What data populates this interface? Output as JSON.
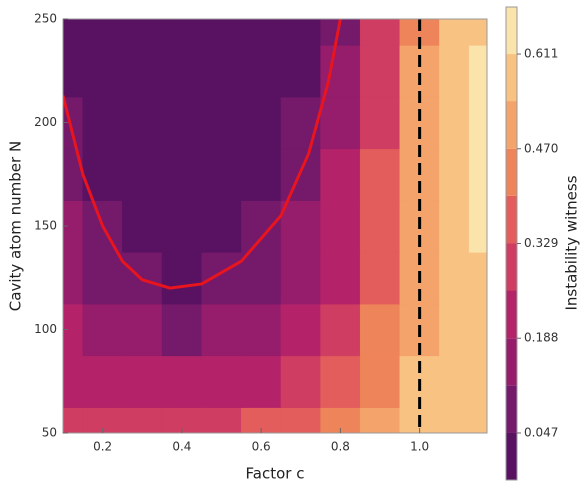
{
  "chart_data": {
    "type": "contour",
    "x_label": "Factor c",
    "y_label": "Cavity atom number N",
    "colorbar_label": "Instability witness",
    "x": [
      0.1,
      0.2,
      0.3,
      0.4,
      0.5,
      0.6,
      0.7,
      0.8,
      0.9,
      1.0,
      1.1,
      1.15
    ],
    "y": [
      50,
      75,
      100,
      125,
      150,
      175,
      200,
      225,
      250
    ],
    "z": [
      [
        0.28,
        0.3,
        0.3,
        0.3,
        0.3,
        0.33,
        0.38,
        0.42,
        0.5,
        0.58,
        0.6,
        0.6
      ],
      [
        0.22,
        0.22,
        0.2,
        0.2,
        0.2,
        0.22,
        0.28,
        0.36,
        0.45,
        0.55,
        0.57,
        0.58
      ],
      [
        0.2,
        0.16,
        0.12,
        0.1,
        0.12,
        0.16,
        0.22,
        0.3,
        0.4,
        0.52,
        0.55,
        0.57
      ],
      [
        0.16,
        0.1,
        0.06,
        0.03,
        0.05,
        0.1,
        0.16,
        0.25,
        0.38,
        0.5,
        0.56,
        0.58
      ],
      [
        0.12,
        0.06,
        0.02,
        0.0,
        0.02,
        0.06,
        0.13,
        0.22,
        0.36,
        0.5,
        0.58,
        0.62
      ],
      [
        0.08,
        0.02,
        0.0,
        0.0,
        0.0,
        0.03,
        0.1,
        0.2,
        0.35,
        0.5,
        0.6,
        0.65
      ],
      [
        0.05,
        0.0,
        0.0,
        0.0,
        0.0,
        0.0,
        0.05,
        0.15,
        0.32,
        0.48,
        0.6,
        0.65
      ],
      [
        0.02,
        0.0,
        0.0,
        0.0,
        0.0,
        0.0,
        0.02,
        0.12,
        0.3,
        0.47,
        0.58,
        0.62
      ],
      [
        0.0,
        0.0,
        0.0,
        0.0,
        0.0,
        0.0,
        0.0,
        0.1,
        0.3,
        0.45,
        0.55,
        0.6
      ]
    ],
    "curve": {
      "color": "#e8141e",
      "x": [
        0.1,
        0.15,
        0.2,
        0.25,
        0.3,
        0.37,
        0.45,
        0.55,
        0.65,
        0.72,
        0.77,
        0.8
      ],
      "y": [
        213,
        175,
        150,
        133,
        124,
        120,
        122,
        133,
        155,
        185,
        220,
        250
      ]
    },
    "vline": 1.0,
    "xlim": [
      0.1,
      1.17
    ],
    "ylim": [
      50,
      250
    ],
    "xticks": [
      0.2,
      0.4,
      0.6,
      0.8,
      {
        "value": 1.0,
        "label": "1.0"
      }
    ],
    "yticks": [
      50,
      100,
      150,
      200,
      250
    ],
    "levels": [
      -0.023,
      0.047,
      0.118,
      0.188,
      0.259,
      0.329,
      0.4,
      0.47,
      0.541,
      0.611,
      0.681
    ],
    "colorbar_ticks": [
      0.047,
      0.188,
      0.329,
      {
        "value": 0.47,
        "label": "0.470"
      },
      0.611
    ],
    "colormap": [
      "#4b0f5c",
      "#7a1a6c",
      "#b01f6a",
      "#dc4a5e",
      "#f08a58",
      "#f8bc7c",
      "#fcf4c0"
    ]
  }
}
